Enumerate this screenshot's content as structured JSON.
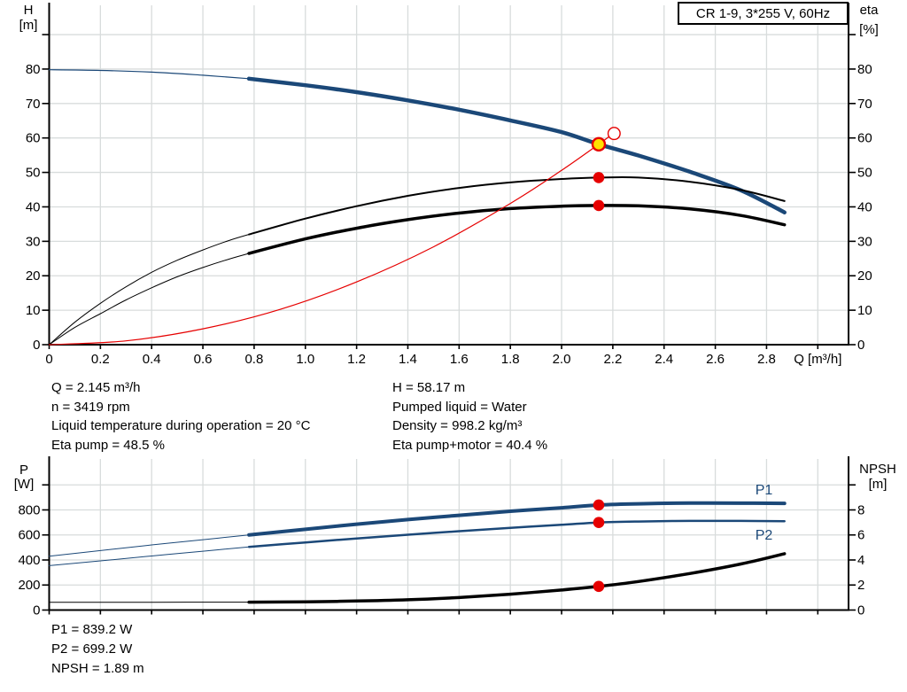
{
  "title_box": {
    "label": "CR 1-9, 3*255 V, 60Hz"
  },
  "colors": {
    "curve_blue": "#1b4878",
    "curve_black": "#000000",
    "curve_red": "#e60000",
    "duty_yellow": "#ffe000",
    "label_blue": "#1b4878",
    "grid": "#d8dcdc",
    "axis": "#000000",
    "text": "#000000"
  },
  "operating_text": {
    "left": [
      "Q = 2.145 m³/h",
      "n = 3419 rpm",
      "Liquid temperature during operation = 20 °C",
      "Eta pump = 48.5 %"
    ],
    "right": [
      "H = 58.17 m",
      "Pumped liquid = Water",
      "Density = 998.2 kg/m³",
      "Eta pump+motor = 40.4 %"
    ]
  },
  "result_text": {
    "lines": [
      "P1 = 839.2 W",
      "P2 = 699.2 W",
      "NPSH = 1.89 m"
    ]
  },
  "chart_data": [
    {
      "type": "line",
      "name": "head-and-efficiency-vs-flow",
      "xlabel": "Q [m³/h]",
      "xlabel_at": 3.0,
      "y_left_label": [
        "H",
        "[m]"
      ],
      "y_right_label": [
        "eta",
        "[%]"
      ],
      "xlim": [
        0,
        3.12
      ],
      "ylim_left": [
        0,
        98.5
      ],
      "ylim_right": [
        0,
        98.5
      ],
      "grid": true,
      "x_ticks": [
        {
          "v": 0,
          "t": "0"
        },
        {
          "v": 0.2,
          "t": "0.2"
        },
        {
          "v": 0.4,
          "t": "0.4"
        },
        {
          "v": 0.6,
          "t": "0.6"
        },
        {
          "v": 0.8,
          "t": "0.8"
        },
        {
          "v": 1,
          "t": "1.0"
        },
        {
          "v": 1.2,
          "t": "1.2"
        },
        {
          "v": 1.4,
          "t": "1.4"
        },
        {
          "v": 1.6,
          "t": "1.6"
        },
        {
          "v": 1.8,
          "t": "1.8"
        },
        {
          "v": 2,
          "t": "2.0"
        },
        {
          "v": 2.2,
          "t": "2.2"
        },
        {
          "v": 2.4,
          "t": "2.4"
        },
        {
          "v": 2.6,
          "t": "2.6"
        },
        {
          "v": 2.8,
          "t": "2.8"
        },
        {
          "v": 3,
          "t": ""
        }
      ],
      "y_ticks_left": [
        {
          "v": 90,
          "t": ""
        },
        {
          "v": 80,
          "t": "80"
        },
        {
          "v": 70,
          "t": "70"
        },
        {
          "v": 60,
          "t": "60"
        },
        {
          "v": 50,
          "t": "50"
        },
        {
          "v": 40,
          "t": "40"
        },
        {
          "v": 30,
          "t": "30"
        },
        {
          "v": 20,
          "t": "20"
        },
        {
          "v": 10,
          "t": "10"
        },
        {
          "v": 0,
          "t": "0"
        }
      ],
      "y_ticks_right": [
        {
          "v": 90,
          "t": ""
        },
        {
          "v": 80,
          "t": "80"
        },
        {
          "v": 70,
          "t": "70"
        },
        {
          "v": 60,
          "t": "60"
        },
        {
          "v": 50,
          "t": "50"
        },
        {
          "v": 40,
          "t": "40"
        },
        {
          "v": 30,
          "t": "30"
        },
        {
          "v": 20,
          "t": "20"
        },
        {
          "v": 10,
          "t": "10"
        },
        {
          "v": 0,
          "t": "0"
        }
      ],
      "series": [
        {
          "name": "pump-curve-thin",
          "color": "#1b4878",
          "width": 1.2,
          "axis": "left",
          "points": [
            [
              0,
              79.8
            ],
            [
              0.2,
              79.6
            ],
            [
              0.4,
              79.1
            ],
            [
              0.6,
              78.2
            ],
            [
              0.78,
              77.2
            ]
          ]
        },
        {
          "name": "pump-curve",
          "color": "#1b4878",
          "width": 4.5,
          "axis": "left",
          "points": [
            [
              0.78,
              77.2
            ],
            [
              1.0,
              75.3
            ],
            [
              1.2,
              73.3
            ],
            [
              1.4,
              70.9
            ],
            [
              1.6,
              68.2
            ],
            [
              1.8,
              65.1
            ],
            [
              2.0,
              61.7
            ],
            [
              2.145,
              58.17
            ],
            [
              2.3,
              54.9
            ],
            [
              2.5,
              50.2
            ],
            [
              2.7,
              44.8
            ],
            [
              2.87,
              38.4
            ]
          ]
        },
        {
          "name": "eta-pump-thin",
          "color": "#000000",
          "width": 1,
          "axis": "right",
          "points": [
            [
              0,
              0
            ],
            [
              0.1,
              6.5
            ],
            [
              0.2,
              12
            ],
            [
              0.3,
              16.8
            ],
            [
              0.4,
              21
            ],
            [
              0.5,
              24.5
            ],
            [
              0.6,
              27.5
            ],
            [
              0.7,
              30.2
            ],
            [
              0.78,
              32
            ]
          ]
        },
        {
          "name": "eta-pump",
          "color": "#000000",
          "width": 2,
          "axis": "right",
          "points": [
            [
              0.78,
              32
            ],
            [
              1.0,
              36.6
            ],
            [
              1.2,
              40.2
            ],
            [
              1.4,
              43.2
            ],
            [
              1.6,
              45.5
            ],
            [
              1.8,
              47.1
            ],
            [
              2.0,
              48.1
            ],
            [
              2.145,
              48.5
            ],
            [
              2.3,
              48.5
            ],
            [
              2.5,
              47.3
            ],
            [
              2.7,
              44.9
            ],
            [
              2.87,
              41.7
            ]
          ]
        },
        {
          "name": "eta-pump-motor-thin",
          "color": "#000000",
          "width": 1,
          "axis": "right",
          "points": [
            [
              0,
              0
            ],
            [
              0.1,
              5
            ],
            [
              0.2,
              9
            ],
            [
              0.3,
              13
            ],
            [
              0.4,
              16.5
            ],
            [
              0.5,
              19.7
            ],
            [
              0.6,
              22.4
            ],
            [
              0.7,
              24.8
            ],
            [
              0.78,
              26.5
            ]
          ]
        },
        {
          "name": "eta-pump-motor",
          "color": "#000000",
          "width": 3.5,
          "axis": "right",
          "points": [
            [
              0.78,
              26.5
            ],
            [
              1.0,
              30.7
            ],
            [
              1.2,
              33.8
            ],
            [
              1.4,
              36.3
            ],
            [
              1.6,
              38.2
            ],
            [
              1.8,
              39.5
            ],
            [
              2.0,
              40.2
            ],
            [
              2.145,
              40.4
            ],
            [
              2.3,
              40.3
            ],
            [
              2.5,
              39.4
            ],
            [
              2.7,
              37.5
            ],
            [
              2.87,
              34.8
            ]
          ]
        },
        {
          "name": "system-curve",
          "color": "#e60000",
          "width": 1.2,
          "axis": "left",
          "points": [
            [
              0,
              0
            ],
            [
              0.3,
              1.1
            ],
            [
              0.6,
              4.6
            ],
            [
              0.9,
              10.2
            ],
            [
              1.2,
              18.2
            ],
            [
              1.5,
              28.4
            ],
            [
              1.8,
              41.0
            ],
            [
              2.0,
              50.6
            ],
            [
              2.145,
              58.17
            ],
            [
              2.2,
              61.2
            ]
          ]
        }
      ],
      "markers": [
        {
          "name": "duty-point",
          "type": "duty",
          "x": 2.145,
          "y": 58.17,
          "axis": "left"
        },
        {
          "name": "requested-duty-point",
          "type": "open",
          "x": 2.205,
          "y": 61.3,
          "axis": "left"
        },
        {
          "name": "eta-pump-point",
          "type": "dot",
          "x": 2.145,
          "y": 48.5,
          "axis": "right"
        },
        {
          "name": "eta-pump-motor-point",
          "type": "dot",
          "x": 2.145,
          "y": 40.4,
          "axis": "right"
        }
      ],
      "curve_labels": []
    },
    {
      "type": "line",
      "name": "power-and-npsh-vs-flow",
      "xlabel": "",
      "xlabel_at": 3.0,
      "y_left_label": [
        "P",
        "[W]"
      ],
      "y_right_label": [
        "NPSH",
        "[m]"
      ],
      "xlim": [
        0,
        3.12
      ],
      "ylim_left": [
        0,
        1207
      ],
      "ylim_right": [
        0,
        12.07
      ],
      "grid": true,
      "x_ticks": [
        {
          "v": 0,
          "t": ""
        },
        {
          "v": 0.2,
          "t": ""
        },
        {
          "v": 0.4,
          "t": ""
        },
        {
          "v": 0.6,
          "t": ""
        },
        {
          "v": 0.8,
          "t": ""
        },
        {
          "v": 1,
          "t": ""
        },
        {
          "v": 1.2,
          "t": ""
        },
        {
          "v": 1.4,
          "t": ""
        },
        {
          "v": 1.6,
          "t": ""
        },
        {
          "v": 1.8,
          "t": ""
        },
        {
          "v": 2,
          "t": ""
        },
        {
          "v": 2.2,
          "t": ""
        },
        {
          "v": 2.4,
          "t": ""
        },
        {
          "v": 2.6,
          "t": ""
        },
        {
          "v": 2.8,
          "t": ""
        },
        {
          "v": 3,
          "t": ""
        }
      ],
      "y_ticks_left": [
        {
          "v": 1000,
          "t": ""
        },
        {
          "v": 800,
          "t": "800"
        },
        {
          "v": 600,
          "t": "600"
        },
        {
          "v": 400,
          "t": "400"
        },
        {
          "v": 200,
          "t": "200"
        },
        {
          "v": 0,
          "t": "0"
        }
      ],
      "y_ticks_right": [
        {
          "v": 10,
          "t": ""
        },
        {
          "v": 8,
          "t": "8"
        },
        {
          "v": 6,
          "t": "6"
        },
        {
          "v": 4,
          "t": "4"
        },
        {
          "v": 2,
          "t": "2"
        },
        {
          "v": 0,
          "t": "0"
        }
      ],
      "series": [
        {
          "name": "p1-curve-thin",
          "color": "#1b4878",
          "width": 1,
          "axis": "left",
          "points": [
            [
              0,
              430
            ],
            [
              0.2,
              475
            ],
            [
              0.4,
              520
            ],
            [
              0.6,
              562
            ],
            [
              0.78,
              600
            ]
          ]
        },
        {
          "name": "p1-curve",
          "color": "#1b4878",
          "width": 4,
          "axis": "left",
          "points": [
            [
              0.78,
              600
            ],
            [
              1.0,
              645
            ],
            [
              1.2,
              686
            ],
            [
              1.4,
              723
            ],
            [
              1.6,
              757
            ],
            [
              1.8,
              789
            ],
            [
              2.0,
              817
            ],
            [
              2.145,
              839.2
            ],
            [
              2.3,
              849
            ],
            [
              2.5,
              855
            ],
            [
              2.7,
              854
            ],
            [
              2.87,
              852
            ]
          ]
        },
        {
          "name": "p2-curve-thin",
          "color": "#1b4878",
          "width": 1,
          "axis": "left",
          "points": [
            [
              0,
              355
            ],
            [
              0.2,
              393
            ],
            [
              0.4,
              432
            ],
            [
              0.6,
              470
            ],
            [
              0.78,
              505
            ]
          ]
        },
        {
          "name": "p2-curve",
          "color": "#1b4878",
          "width": 2.5,
          "axis": "left",
          "points": [
            [
              0.78,
              505
            ],
            [
              1.0,
              540
            ],
            [
              1.2,
              572
            ],
            [
              1.4,
              602
            ],
            [
              1.6,
              630
            ],
            [
              1.8,
              657
            ],
            [
              2.0,
              681
            ],
            [
              2.145,
              699.2
            ],
            [
              2.3,
              707
            ],
            [
              2.5,
              712
            ],
            [
              2.7,
              712
            ],
            [
              2.87,
              710
            ]
          ]
        },
        {
          "name": "npsh-curve-thin",
          "color": "#000000",
          "width": 1,
          "axis": "right",
          "points": [
            [
              0,
              0.62
            ],
            [
              0.4,
              0.62
            ],
            [
              0.78,
              0.63
            ]
          ]
        },
        {
          "name": "npsh-curve",
          "color": "#000000",
          "width": 3.5,
          "axis": "right",
          "points": [
            [
              0.78,
              0.63
            ],
            [
              1.0,
              0.66
            ],
            [
              1.2,
              0.72
            ],
            [
              1.4,
              0.82
            ],
            [
              1.6,
              1.0
            ],
            [
              1.8,
              1.27
            ],
            [
              2.0,
              1.6
            ],
            [
              2.145,
              1.89
            ],
            [
              2.3,
              2.28
            ],
            [
              2.5,
              2.92
            ],
            [
              2.7,
              3.68
            ],
            [
              2.87,
              4.5
            ]
          ]
        }
      ],
      "markers": [
        {
          "name": "p1-point",
          "type": "dot",
          "x": 2.145,
          "y": 839.2,
          "axis": "left"
        },
        {
          "name": "p2-point",
          "type": "dot",
          "x": 2.145,
          "y": 699.2,
          "axis": "left"
        },
        {
          "name": "npsh-point",
          "type": "dot",
          "x": 2.145,
          "y": 1.89,
          "axis": "right"
        }
      ],
      "curve_labels": [
        {
          "text": "P1",
          "x": 2.79,
          "y": 924,
          "axis": "left"
        },
        {
          "text": "P2",
          "x": 2.79,
          "y": 563,
          "axis": "left"
        }
      ]
    }
  ]
}
